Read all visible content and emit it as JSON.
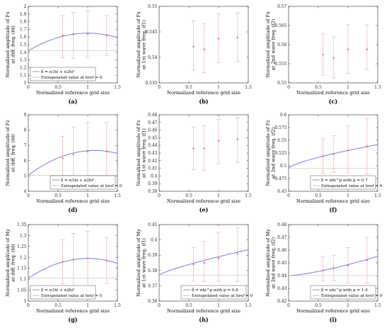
{
  "figure": {
    "panel_labels": [
      "(a)",
      "(b)",
      "(c)",
      "(d)",
      "(e)",
      "(f)",
      "(g)",
      "(h)",
      "(i)"
    ]
  },
  "chart_data": [
    {
      "type": "scatter",
      "panel": "(a)",
      "ylabel_lines": [
        "Normalized amplitude of Fx",
        "at diff. freq. (fd)"
      ],
      "xlabel": "Normalized reference grid size",
      "xlim": [
        0,
        1.5
      ],
      "ylim": [
        1,
        2
      ],
      "xticks": [
        "0",
        "0.5",
        "1",
        "1.5"
      ],
      "yticks": [
        "1",
        "1.1",
        "1.2",
        "1.3",
        "1.4",
        "1.5",
        "1.6",
        "1.7",
        "1.8",
        "1.9",
        "2"
      ],
      "grid": false,
      "points": [
        {
          "x": 0.58,
          "y": 1.62,
          "lo": 1.33,
          "hi": 1.88
        },
        {
          "x": 0.76,
          "y": 1.64,
          "lo": 1.32,
          "hi": 1.92
        },
        {
          "x": 1.0,
          "y": 1.64,
          "lo": 1.33,
          "hi": 1.94
        },
        {
          "x": 1.32,
          "y": 1.62,
          "lo": 1.36,
          "hi": 1.88
        }
      ],
      "fit": {
        "type": "quadratic",
        "a0": 1.42,
        "a1": 0.46,
        "a2": -0.23
      },
      "legend": {
        "position": "bottom-left",
        "entries": [
          "δ = α1hi + α2hi²",
          "Extrapolated value at href = 0"
        ]
      }
    },
    {
      "type": "scatter",
      "panel": "(b)",
      "ylabel_lines": [
        "Normalized amplitude of Fx",
        "at 1st wave freq. (f1)"
      ],
      "xlabel": "Normalized reference grid size",
      "xlim": [
        0,
        1.5
      ],
      "ylim": [
        0.535,
        0.55
      ],
      "xticks": [
        "0",
        "0.5",
        "1",
        "1.5"
      ],
      "yticks": [
        "0.535",
        "0.54",
        "0.545",
        "0.55"
      ],
      "grid": false,
      "points": [
        {
          "x": 0.58,
          "y": 0.5421,
          "lo": 0.5375,
          "hi": 0.5472
        },
        {
          "x": 0.76,
          "y": 0.5416,
          "lo": 0.537,
          "hi": 0.5466
        },
        {
          "x": 1.0,
          "y": 0.5437,
          "lo": 0.539,
          "hi": 0.5485
        },
        {
          "x": 1.32,
          "y": 0.5439,
          "lo": 0.5392,
          "hi": 0.5487
        }
      ]
    },
    {
      "type": "scatter",
      "panel": "(c)",
      "ylabel_lines": [
        "Normalized amplitude of Fx",
        "at 2nd wave freq. (f2)"
      ],
      "xlabel": "Normalized reference grid size",
      "xlim": [
        0,
        1.5
      ],
      "ylim": [
        0.55,
        0.57
      ],
      "xticks": [
        "0",
        "0.5",
        "1",
        "1.5"
      ],
      "yticks": [
        "0.55",
        "0.555",
        "0.56",
        "0.565",
        "0.57"
      ],
      "grid": false,
      "points": [
        {
          "x": 0.58,
          "y": 0.5574,
          "lo": 0.552,
          "hi": 0.5628
        },
        {
          "x": 0.76,
          "y": 0.5565,
          "lo": 0.5513,
          "hi": 0.562
        },
        {
          "x": 1.0,
          "y": 0.5588,
          "lo": 0.5524,
          "hi": 0.5652
        },
        {
          "x": 1.32,
          "y": 0.5588,
          "lo": 0.5535,
          "hi": 0.5652
        }
      ]
    },
    {
      "type": "scatter",
      "panel": "(d)",
      "ylabel_lines": [
        "Normalized amplitude of Fz",
        "at diff. freq. (fd)"
      ],
      "xlabel": "Normalized reference grid size",
      "xlim": [
        0,
        1.5
      ],
      "ylim": [
        4,
        9
      ],
      "xticks": [
        "0",
        "0.5",
        "1",
        "1.5"
      ],
      "yticks": [
        "4",
        "5",
        "6",
        "7",
        "8",
        "9"
      ],
      "grid": false,
      "points": [
        {
          "x": 0.58,
          "y": 6.15,
          "lo": 4.7,
          "hi": 7.6
        },
        {
          "x": 0.76,
          "y": 6.4,
          "lo": 4.95,
          "hi": 8.2
        },
        {
          "x": 1.0,
          "y": 6.6,
          "lo": 5.0,
          "hi": 8.5
        },
        {
          "x": 1.32,
          "y": 6.6,
          "lo": 5.0,
          "hi": 8.5
        }
      ],
      "fit": {
        "type": "quadratic",
        "a0": 5.05,
        "a1": 2.9,
        "a2": -1.3
      },
      "legend": {
        "position": "bottom-right",
        "entries": [
          "δ = α1hi + α2hi²",
          "Extrapolated value at href = 0"
        ]
      }
    },
    {
      "type": "scatter",
      "panel": "(e)",
      "ylabel_lines": [
        "Normalized amplitude of Fz",
        "at 1st wave freq. (f1)"
      ],
      "xlabel": "Normalized reference grid size",
      "xlim": [
        0,
        1.5
      ],
      "ylim": [
        0.38,
        0.48
      ],
      "xticks": [
        "0",
        "0.5",
        "1",
        "1.5"
      ],
      "yticks": [
        "0.38",
        "0.39",
        "0.4",
        "0.41",
        "0.42",
        "0.43",
        "0.44",
        "0.45",
        "0.46",
        "0.47",
        "0.48"
      ],
      "grid": false,
      "points": [
        {
          "x": 0.58,
          "y": 0.436,
          "lo": 0.408,
          "hi": 0.464
        },
        {
          "x": 0.76,
          "y": 0.436,
          "lo": 0.407,
          "hi": 0.466
        },
        {
          "x": 1.0,
          "y": 0.446,
          "lo": 0.416,
          "hi": 0.474
        },
        {
          "x": 1.32,
          "y": 0.448,
          "lo": 0.418,
          "hi": 0.476
        }
      ]
    },
    {
      "type": "scatter",
      "panel": "(f)",
      "ylabel_lines": [
        "Normalized amplitude of Fz",
        "at 2nd wave freq. (f2)"
      ],
      "xlabel": "Normalized reference grid size",
      "xlim": [
        0,
        1.5
      ],
      "ylim": [
        0.45,
        0.6
      ],
      "xticks": [
        "0",
        "0.5",
        "1",
        "1.5"
      ],
      "yticks": [
        "0.45",
        "0.475",
        "0.5",
        "0.525",
        "0.55",
        "0.575",
        "0.6"
      ],
      "grid": false,
      "points": [
        {
          "x": 0.58,
          "y": 0.519,
          "lo": 0.485,
          "hi": 0.553
        },
        {
          "x": 0.76,
          "y": 0.523,
          "lo": 0.487,
          "hi": 0.559
        },
        {
          "x": 1.0,
          "y": 0.53,
          "lo": 0.486,
          "hi": 0.578
        },
        {
          "x": 1.32,
          "y": 0.538,
          "lo": 0.484,
          "hi": 0.592
        }
      ],
      "fit": {
        "type": "power",
        "a0": 0.495,
        "alpha": 0.035,
        "p": 0.7
      },
      "legend": {
        "position": "bottom-right",
        "entries": [
          "δ = αhi^p with p = 0.7",
          "Extrapolated value at href = 0"
        ]
      }
    },
    {
      "type": "scatter",
      "panel": "(g)",
      "ylabel_lines": [
        "Normalized amplitude of My",
        "at diff. freq. (fd)"
      ],
      "xlabel": "Normalized reference grid size",
      "xlim": [
        0,
        1.5
      ],
      "ylim": [
        1,
        1.35
      ],
      "xticks": [
        "0",
        "0.5",
        "1",
        "1.5"
      ],
      "yticks": [
        "1",
        "1.05",
        "1.1",
        "1.15",
        "1.2",
        "1.25",
        "1.3",
        "1.35"
      ],
      "grid": false,
      "points": [
        {
          "x": 0.58,
          "y": 1.18,
          "lo": 1.08,
          "hi": 1.28
        },
        {
          "x": 0.76,
          "y": 1.19,
          "lo": 1.07,
          "hi": 1.31
        },
        {
          "x": 1.0,
          "y": 1.195,
          "lo": 1.07,
          "hi": 1.32
        },
        {
          "x": 1.32,
          "y": 1.185,
          "lo": 1.08,
          "hi": 1.29
        }
      ],
      "fit": {
        "type": "quadratic",
        "a0": 1.105,
        "a1": 0.18,
        "a2": -0.09
      },
      "legend": {
        "position": "bottom-left",
        "entries": [
          "δ = α1hi + α2hi²",
          "Extrapolated value at href = 0"
        ]
      }
    },
    {
      "type": "scatter",
      "panel": "(h)",
      "ylabel_lines": [
        "Normalized amplitude of My",
        "at 1st wave freq. (f1)"
      ],
      "xlabel": "Normalized reference grid size",
      "xlim": [
        0,
        1.5
      ],
      "ylim": [
        0.36,
        0.41
      ],
      "xticks": [
        "0",
        "0.5",
        "1",
        "1.5"
      ],
      "yticks": [
        "0.36",
        "0.37",
        "0.38",
        "0.39",
        "0.4",
        "0.41"
      ],
      "grid": false,
      "points": [
        {
          "x": 0.58,
          "y": 0.384,
          "lo": 0.373,
          "hi": 0.395
        },
        {
          "x": 0.76,
          "y": 0.385,
          "lo": 0.373,
          "hi": 0.399
        },
        {
          "x": 1.0,
          "y": 0.388,
          "lo": 0.373,
          "hi": 0.405
        },
        {
          "x": 1.32,
          "y": 0.391,
          "lo": 0.373,
          "hi": 0.408
        }
      ],
      "fit": {
        "type": "power",
        "a0": 0.377,
        "alpha": 0.012,
        "p": 0.8
      },
      "legend": {
        "position": "bottom-right",
        "entries": [
          "δ = αhi^p with p = 0.8",
          "Extrapolated value at href = 0"
        ]
      }
    },
    {
      "type": "scatter",
      "panel": "(i)",
      "ylabel_lines": [
        "Normalized amplitude of My",
        "at 2nd wave freq. (f2)"
      ],
      "xlabel": "Normalized reference grid size",
      "xlim": [
        0,
        1.5
      ],
      "ylim": [
        0.42,
        0.48
      ],
      "xticks": [
        "0",
        "0.5",
        "1",
        "1.5"
      ],
      "yticks": [
        "0.42",
        "0.43",
        "0.44",
        "0.45",
        "0.46",
        "0.47",
        "0.48"
      ],
      "grid": false,
      "points": [
        {
          "x": 0.58,
          "y": 0.444,
          "lo": 0.436,
          "hi": 0.455
        },
        {
          "x": 0.76,
          "y": 0.446,
          "lo": 0.436,
          "hi": 0.456
        },
        {
          "x": 1.0,
          "y": 0.448,
          "lo": 0.434,
          "hi": 0.462
        },
        {
          "x": 1.32,
          "y": 0.452,
          "lo": 0.434,
          "hi": 0.47
        }
      ],
      "fit": {
        "type": "power",
        "a0": 0.44,
        "alpha": 0.0086,
        "p": 1.4
      },
      "legend": {
        "position": "bottom-right",
        "entries": [
          "δ = αhi^p with p = 1.4",
          "Extrapolated value at href = 0"
        ]
      }
    }
  ]
}
